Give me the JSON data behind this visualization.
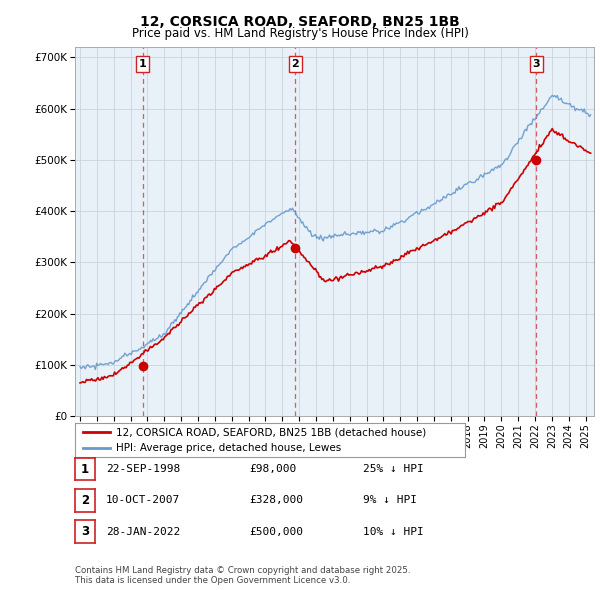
{
  "title": "12, CORSICA ROAD, SEAFORD, BN25 1BB",
  "subtitle": "Price paid vs. HM Land Registry's House Price Index (HPI)",
  "background_color": "#ffffff",
  "plot_bg_color": "#e8f0f8",
  "grid_color": "#c8d4e0",
  "sale_color": "#cc0000",
  "hpi_color": "#6699cc",
  "ylim": [
    0,
    720000
  ],
  "yticks": [
    0,
    100000,
    200000,
    300000,
    400000,
    500000,
    600000,
    700000
  ],
  "ytick_labels": [
    "£0",
    "£100K",
    "£200K",
    "£300K",
    "£400K",
    "£500K",
    "£600K",
    "£700K"
  ],
  "xlim_start": 1994.7,
  "xlim_end": 2025.5,
  "sales": [
    {
      "year": 1998.72,
      "price": 98000,
      "label": "1"
    },
    {
      "year": 2007.77,
      "price": 328000,
      "label": "2"
    },
    {
      "year": 2022.08,
      "price": 500000,
      "label": "3"
    }
  ],
  "vline_color": "#cc4444",
  "marker_color": "#cc0000",
  "legend_entries": [
    "12, CORSICA ROAD, SEAFORD, BN25 1BB (detached house)",
    "HPI: Average price, detached house, Lewes"
  ],
  "table_rows": [
    {
      "num": "1",
      "date": "22-SEP-1998",
      "price": "£98,000",
      "hpi": "25% ↓ HPI"
    },
    {
      "num": "2",
      "date": "10-OCT-2007",
      "price": "£328,000",
      "hpi": "9% ↓ HPI"
    },
    {
      "num": "3",
      "date": "28-JAN-2022",
      "price": "£500,000",
      "hpi": "10% ↓ HPI"
    }
  ],
  "footer": "Contains HM Land Registry data © Crown copyright and database right 2025.\nThis data is licensed under the Open Government Licence v3.0."
}
